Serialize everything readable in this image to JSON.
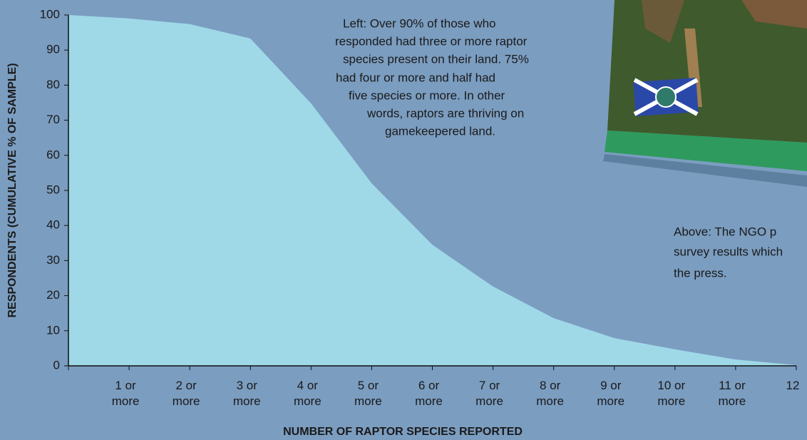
{
  "chart_data": {
    "type": "area",
    "x_label": "NUMBER OF RAPTOR SPECIES REPORTED",
    "y_label": "RESPONDENTS (CUMULATIVE % OF SAMPLE)",
    "categories": [
      null,
      "1 or more",
      "2 or more",
      "3 or more",
      "4 or more",
      "5 or more",
      "6 or more",
      "7 or more",
      "8 or more",
      "9 or more",
      "10 or more",
      "11 or more",
      "12"
    ],
    "values": [
      100,
      99,
      97.4,
      93.3,
      74.8,
      52,
      34.5,
      22.6,
      13.6,
      7.9,
      4.7,
      1.8,
      0.2
    ],
    "color": "#9fd9e8",
    "ylim": [
      0,
      100
    ],
    "yticks": [
      0,
      10,
      20,
      30,
      40,
      50,
      60,
      70,
      80,
      90,
      100
    ],
    "grid": false,
    "annotation": [
      "Left: Over 90% of those who",
      "responded had three or more raptor",
      "species present on their land. 75%",
      "had four or more and half had",
      "five species or more. In other",
      "words, raptors are thriving on",
      "gamekeepered land."
    ],
    "caption": [
      "Above: The NGO p",
      "survey results which",
      "the press."
    ]
  }
}
